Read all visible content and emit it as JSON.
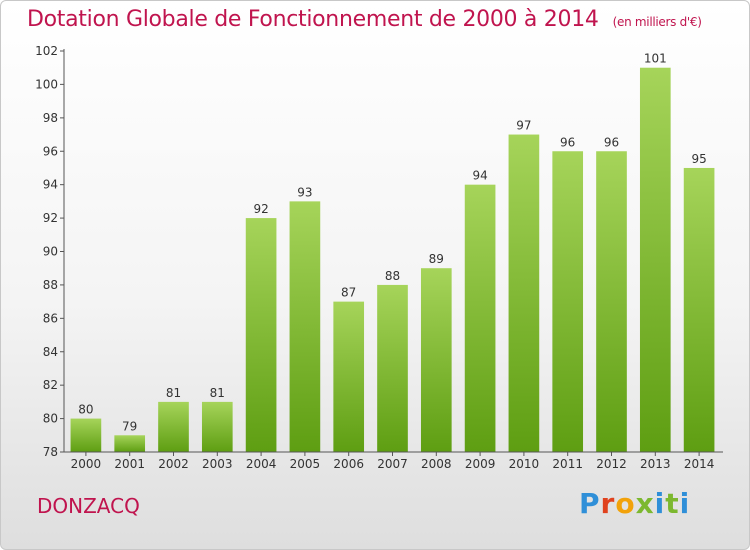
{
  "header": {
    "title": "Dotation Globale de Fonctionnement de 2000 à 2014",
    "unit": "(en milliers d'€)"
  },
  "commune": "DONZACQ",
  "logo": {
    "text": "Proxiti"
  },
  "colors": {
    "title": "#c0144e",
    "bar_top": "#a6d45a",
    "bar_bottom": "#5e9e12",
    "axis": "#555555"
  },
  "chart_data": {
    "type": "bar",
    "title": "Dotation Globale de Fonctionnement de 2000 à 2014",
    "xlabel": "",
    "ylabel": "",
    "categories": [
      "2000",
      "2001",
      "2002",
      "2003",
      "2004",
      "2005",
      "2006",
      "2007",
      "2008",
      "2009",
      "2010",
      "2011",
      "2012",
      "2013",
      "2014"
    ],
    "values": [
      80,
      79,
      81,
      81,
      92,
      93,
      87,
      88,
      89,
      94,
      97,
      96,
      96,
      101,
      95
    ],
    "ylim": [
      78,
      102
    ],
    "yticks": [
      78,
      80,
      82,
      84,
      86,
      88,
      90,
      92,
      94,
      96,
      98,
      100,
      102
    ],
    "grid": false,
    "legend": "none"
  }
}
